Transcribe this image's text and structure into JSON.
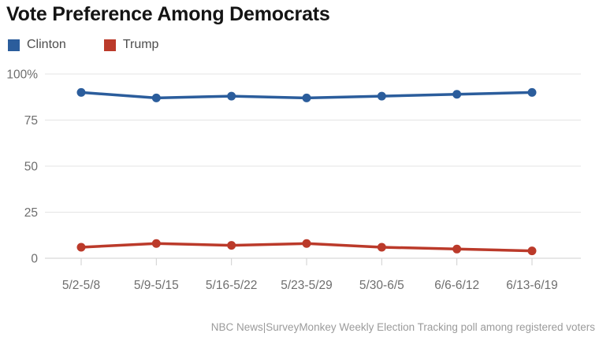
{
  "title": "Vote Preference Among Democrats",
  "legend": [
    {
      "label": "Clinton",
      "color": "#2b5d9c"
    },
    {
      "label": "Trump",
      "color": "#bb3a2a"
    }
  ],
  "footer": "NBC News|SurveyMonkey Weekly Election Tracking poll among registered voters",
  "colors": {
    "title_text": "#141414",
    "legend_text": "#4d4d4d",
    "grid": "#e4e4e4",
    "axis_line": "#cfcfcf",
    "axis_text": "#6e6e6e",
    "footer_text": "#9b9b9b",
    "clinton": "#2b5d9c",
    "trump": "#bb3a2a"
  },
  "chart_data": {
    "type": "line",
    "title": "Vote Preference Among Democrats",
    "categories": [
      "5/2-5/8",
      "5/9-5/15",
      "5/16-5/22",
      "5/23-5/29",
      "5/30-6/5",
      "6/6-6/12",
      "6/13-6/19"
    ],
    "series": [
      {
        "name": "Clinton",
        "color": "#2b5d9c",
        "values": [
          90,
          87,
          88,
          87,
          88,
          89,
          90
        ]
      },
      {
        "name": "Trump",
        "color": "#bb3a2a",
        "values": [
          6,
          8,
          7,
          8,
          6,
          5,
          4
        ]
      }
    ],
    "xlabel": "",
    "ylabel": "",
    "ylim": [
      0,
      100
    ],
    "yticks": [
      {
        "value": 0,
        "label": "0"
      },
      {
        "value": 25,
        "label": "25"
      },
      {
        "value": 50,
        "label": "50"
      },
      {
        "value": 75,
        "label": "75"
      },
      {
        "value": 100,
        "label": "100%"
      }
    ],
    "grid": true,
    "legend_position": "top-left"
  }
}
